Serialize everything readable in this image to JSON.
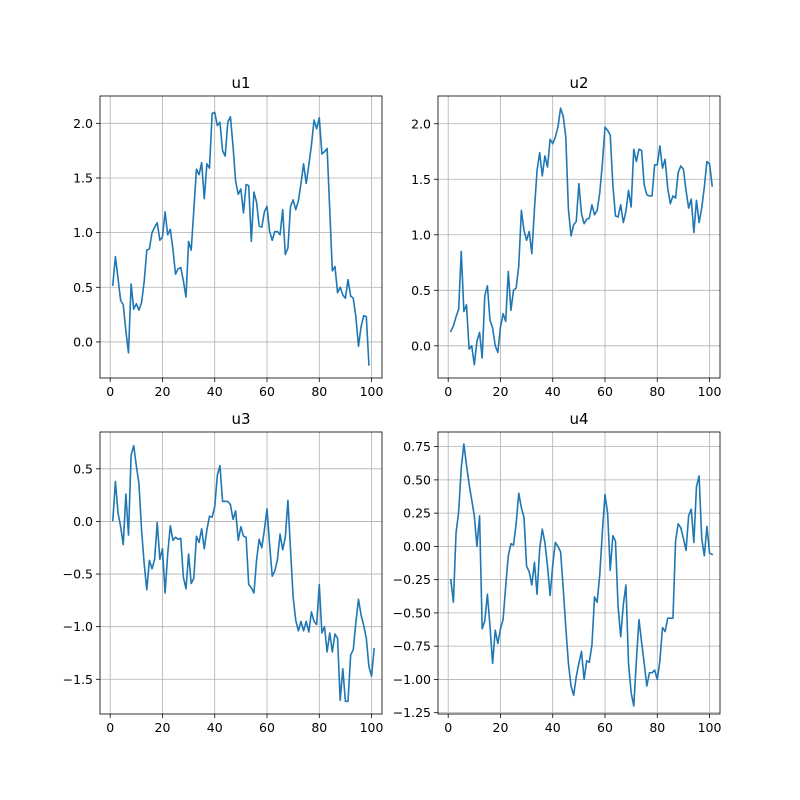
{
  "figure": {
    "background": "#ffffff"
  },
  "chart_data": [
    {
      "type": "line",
      "title": "u1",
      "grid": true,
      "color": "#1f77b4",
      "xlim": [
        -3.9,
        104.0
      ],
      "ylim": [
        -0.33,
        2.25
      ],
      "xticks": [
        0,
        20,
        40,
        60,
        80,
        100
      ],
      "yticks": [
        0.0,
        0.5,
        1.0,
        1.5,
        2.0
      ],
      "xtick_labels": [
        "0",
        "20",
        "40",
        "60",
        "80",
        "100"
      ],
      "ytick_labels": [
        "0.0",
        "0.5",
        "1.0",
        "1.5",
        "2.0"
      ],
      "x_start": 1,
      "y": [
        0.52,
        0.78,
        0.58,
        0.38,
        0.34,
        0.1,
        -0.1,
        0.53,
        0.3,
        0.35,
        0.29,
        0.36,
        0.55,
        0.84,
        0.85,
        1.0,
        1.05,
        1.09,
        0.93,
        0.96,
        1.19,
        0.98,
        1.03,
        0.85,
        0.62,
        0.67,
        0.68,
        0.56,
        0.41,
        0.92,
        0.84,
        1.21,
        1.58,
        1.53,
        1.64,
        1.31,
        1.63,
        1.59,
        2.09,
        2.1,
        1.98,
        2.01,
        1.75,
        1.7,
        2.01,
        2.06,
        1.79,
        1.47,
        1.35,
        1.4,
        1.18,
        1.44,
        1.43,
        0.92,
        1.37,
        1.28,
        1.06,
        1.05,
        1.19,
        1.24,
        1.01,
        0.93,
        1.01,
        1.01,
        0.98,
        1.21,
        0.8,
        0.86,
        1.24,
        1.3,
        1.21,
        1.29,
        1.45,
        1.63,
        1.45,
        1.62,
        1.8,
        2.03,
        1.95,
        2.05,
        1.72,
        1.74,
        1.77,
        1.21,
        0.65,
        0.69,
        0.45,
        0.5,
        0.43,
        0.4,
        0.57,
        0.42,
        0.4,
        0.23,
        -0.04,
        0.14,
        0.24,
        0.23,
        -0.21
      ]
    },
    {
      "type": "line",
      "title": "u2",
      "grid": true,
      "color": "#1f77b4",
      "xlim": [
        -3.9,
        104.0
      ],
      "ylim": [
        -0.29,
        2.25
      ],
      "xticks": [
        0,
        20,
        40,
        60,
        80,
        100
      ],
      "yticks": [
        0.0,
        0.5,
        1.0,
        1.5,
        2.0
      ],
      "xtick_labels": [
        "0",
        "20",
        "40",
        "60",
        "80",
        "100"
      ],
      "ytick_labels": [
        "0.0",
        "0.5",
        "1.0",
        "1.5",
        "2.0"
      ],
      "x_start": 1,
      "y": [
        0.13,
        0.18,
        0.26,
        0.33,
        0.85,
        0.31,
        0.37,
        -0.03,
        0.0,
        -0.17,
        0.04,
        0.12,
        -0.11,
        0.45,
        0.54,
        0.23,
        0.16,
        0.0,
        -0.06,
        0.17,
        0.29,
        0.22,
        0.67,
        0.32,
        0.5,
        0.52,
        0.72,
        1.22,
        1.04,
        0.95,
        1.03,
        0.83,
        1.23,
        1.58,
        1.74,
        1.53,
        1.71,
        1.61,
        1.86,
        1.82,
        1.88,
        1.97,
        2.14,
        2.07,
        1.88,
        1.23,
        0.99,
        1.09,
        1.12,
        1.46,
        1.19,
        1.1,
        1.14,
        1.15,
        1.27,
        1.18,
        1.22,
        1.38,
        1.64,
        1.97,
        1.94,
        1.9,
        1.45,
        1.17,
        1.16,
        1.27,
        1.11,
        1.21,
        1.4,
        1.25,
        1.77,
        1.66,
        1.77,
        1.76,
        1.45,
        1.36,
        1.35,
        1.35,
        1.63,
        1.63,
        1.8,
        1.6,
        1.68,
        1.42,
        1.28,
        1.35,
        1.33,
        1.56,
        1.62,
        1.59,
        1.4,
        1.24,
        1.32,
        1.02,
        1.31,
        1.11,
        1.24,
        1.43,
        1.66,
        1.64,
        1.44
      ]
    },
    {
      "type": "line",
      "title": "u3",
      "grid": true,
      "color": "#1f77b4",
      "xlim": [
        -3.9,
        104.0
      ],
      "ylim": [
        -1.83,
        0.85
      ],
      "xticks": [
        0,
        20,
        40,
        60,
        80,
        100
      ],
      "yticks": [
        -1.5,
        -1.0,
        -0.5,
        0.0,
        0.5
      ],
      "xtick_labels": [
        "0",
        "20",
        "40",
        "60",
        "80",
        "100"
      ],
      "ytick_labels": [
        "−1.5",
        "−1.0",
        "−0.5",
        "0.0",
        "0.5"
      ],
      "x_start": 1,
      "y": [
        0.01,
        0.38,
        0.08,
        -0.05,
        -0.22,
        0.26,
        -0.13,
        0.63,
        0.72,
        0.53,
        0.36,
        -0.08,
        -0.4,
        -0.65,
        -0.37,
        -0.45,
        -0.36,
        -0.01,
        -0.36,
        -0.26,
        -0.68,
        -0.31,
        -0.04,
        -0.18,
        -0.15,
        -0.17,
        -0.16,
        -0.53,
        -0.64,
        -0.31,
        -0.59,
        -0.54,
        -0.14,
        -0.2,
        -0.07,
        -0.26,
        -0.08,
        0.05,
        0.04,
        0.14,
        0.44,
        0.53,
        0.19,
        0.19,
        0.19,
        0.16,
        0.02,
        0.1,
        -0.18,
        -0.05,
        -0.14,
        -0.15,
        -0.6,
        -0.63,
        -0.68,
        -0.37,
        -0.17,
        -0.25,
        -0.08,
        0.12,
        -0.22,
        -0.52,
        -0.47,
        -0.36,
        -0.12,
        -0.27,
        -0.15,
        0.2,
        -0.27,
        -0.72,
        -0.94,
        -1.04,
        -0.95,
        -1.04,
        -0.95,
        -1.05,
        -0.86,
        -0.95,
        -0.98,
        -0.6,
        -1.06,
        -1.0,
        -1.24,
        -1.06,
        -1.24,
        -1.07,
        -1.11,
        -1.7,
        -1.4,
        -1.71,
        -1.71,
        -1.27,
        -1.22,
        -0.96,
        -0.74,
        -0.89,
        -0.99,
        -1.11,
        -1.38,
        -1.47,
        -1.21
      ]
    },
    {
      "type": "line",
      "title": "u4",
      "grid": true,
      "color": "#1f77b4",
      "xlim": [
        -3.9,
        104.0
      ],
      "ylim": [
        -1.26,
        0.86
      ],
      "xticks": [
        0,
        20,
        40,
        60,
        80,
        100
      ],
      "yticks": [
        -1.25,
        -1.0,
        -0.75,
        -0.5,
        -0.25,
        0.0,
        0.25,
        0.5,
        0.75
      ],
      "xtick_labels": [
        "0",
        "20",
        "40",
        "60",
        "80",
        "100"
      ],
      "ytick_labels": [
        "−1.25",
        "−1.00",
        "−0.75",
        "−0.50",
        "−0.25",
        "0.00",
        "0.25",
        "0.50",
        "0.75"
      ],
      "x_start": 1,
      "y": [
        -0.25,
        -0.42,
        0.1,
        0.26,
        0.59,
        0.77,
        0.61,
        0.47,
        0.35,
        0.23,
        0.0,
        0.23,
        -0.62,
        -0.56,
        -0.36,
        -0.6,
        -0.88,
        -0.63,
        -0.73,
        -0.62,
        -0.55,
        -0.3,
        -0.07,
        0.02,
        0.01,
        0.17,
        0.4,
        0.29,
        0.22,
        -0.15,
        -0.19,
        -0.29,
        -0.12,
        -0.36,
        -0.02,
        0.13,
        0.03,
        -0.15,
        -0.37,
        -0.14,
        0.03,
        0.0,
        -0.04,
        -0.31,
        -0.61,
        -0.88,
        -1.05,
        -1.12,
        -0.98,
        -0.88,
        -0.79,
        -1.0,
        -0.86,
        -0.87,
        -0.74,
        -0.38,
        -0.42,
        -0.21,
        0.11,
        0.39,
        0.25,
        -0.18,
        0.08,
        0.04,
        -0.45,
        -0.68,
        -0.44,
        -0.29,
        -0.88,
        -1.1,
        -1.2,
        -0.86,
        -0.55,
        -0.72,
        -0.88,
        -1.05,
        -0.95,
        -0.95,
        -0.93,
        -1.0,
        -0.86,
        -0.61,
        -0.64,
        -0.54,
        -0.54,
        -0.54,
        0.04,
        0.17,
        0.14,
        0.06,
        -0.03,
        0.23,
        0.28,
        0.03,
        0.45,
        0.53,
        0.06,
        -0.07,
        0.15,
        -0.05,
        -0.06
      ]
    }
  ]
}
